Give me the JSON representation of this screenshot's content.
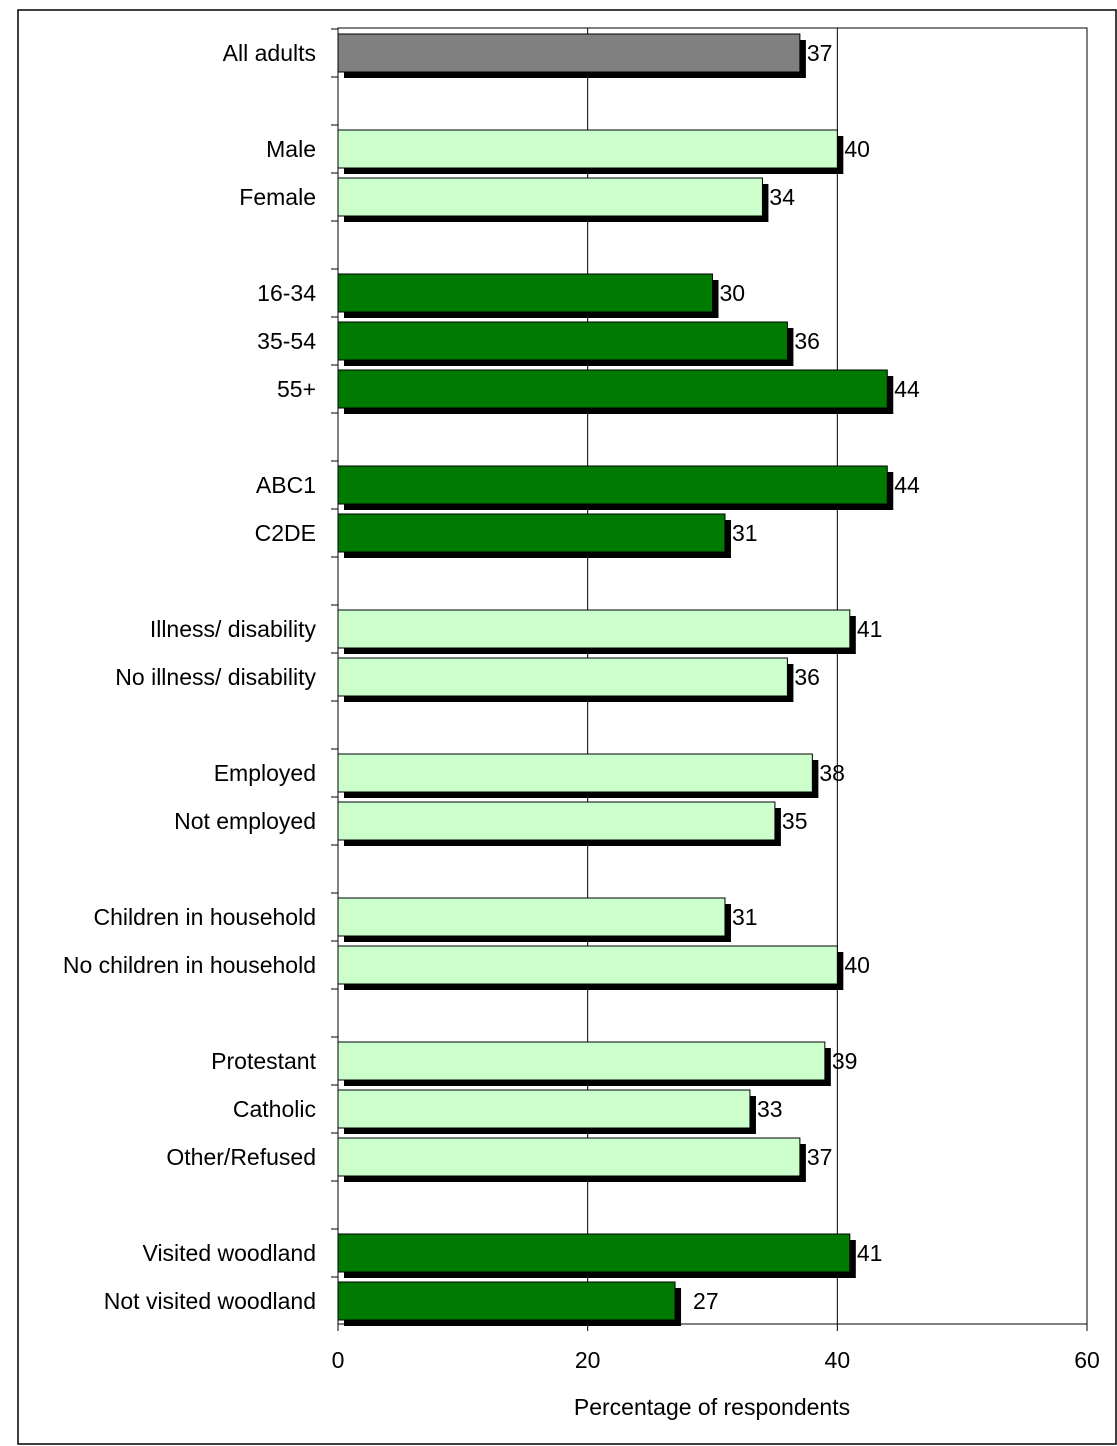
{
  "chart_data": {
    "type": "bar",
    "orientation": "horizontal",
    "title": "",
    "xlabel": "Percentage of respondents",
    "ylabel": "",
    "xlim": [
      0,
      60
    ],
    "x_ticks": [
      0,
      20,
      40,
      60
    ],
    "grid": "vertical gridlines at 20 and 40",
    "legend": "none",
    "colors": {
      "dark_green": "#007a00",
      "light_green": "#ccffcc",
      "grey": "#808080",
      "shadow": "#000000"
    },
    "bars": [
      {
        "category": "All adults",
        "value": 37,
        "label": "37",
        "color": "grey",
        "slot": 0
      },
      {
        "category": "Male",
        "value": 40,
        "label": "40",
        "color": "light_green",
        "slot": 2
      },
      {
        "category": "Female",
        "value": 34,
        "label": "34",
        "color": "light_green",
        "slot": 3
      },
      {
        "category": "16-34",
        "value": 30,
        "label": "30",
        "color": "dark_green",
        "slot": 5
      },
      {
        "category": "35-54",
        "value": 36,
        "label": "36",
        "color": "dark_green",
        "slot": 6
      },
      {
        "category": "55+",
        "value": 44,
        "label": "44",
        "color": "dark_green",
        "slot": 7
      },
      {
        "category": "ABC1",
        "value": 44,
        "label": "44",
        "color": "dark_green",
        "slot": 9
      },
      {
        "category": "C2DE",
        "value": 31,
        "label": "31",
        "color": "dark_green",
        "slot": 10
      },
      {
        "category": "Illness/ disability",
        "value": 41,
        "label": "41",
        "color": "light_green",
        "slot": 12
      },
      {
        "category": "No illness/ disability",
        "value": 36,
        "label": "36",
        "color": "light_green",
        "slot": 13
      },
      {
        "category": "Employed",
        "value": 38,
        "label": "38",
        "color": "light_green",
        "slot": 15
      },
      {
        "category": "Not employed",
        "value": 35,
        "label": "35",
        "color": "light_green",
        "slot": 16
      },
      {
        "category": "Children in household",
        "value": 31,
        "label": "31",
        "color": "light_green",
        "slot": 18
      },
      {
        "category": "No children in household",
        "value": 40,
        "label": "40",
        "color": "light_green",
        "slot": 19
      },
      {
        "category": "Protestant",
        "value": 39,
        "label": "39",
        "color": "light_green",
        "slot": 21
      },
      {
        "category": "Catholic",
        "value": 33,
        "label": "33",
        "color": "light_green",
        "slot": 22
      },
      {
        "category": "Other/Refused",
        "value": 37,
        "label": "37",
        "color": "light_green",
        "slot": 23
      },
      {
        "category": "Visited woodland",
        "value": 41,
        "label": "41",
        "color": "dark_green",
        "slot": 25
      },
      {
        "category": "Not visited woodland",
        "value": 27,
        "label": "27",
        "color": "dark_green",
        "slot": 26
      }
    ]
  }
}
